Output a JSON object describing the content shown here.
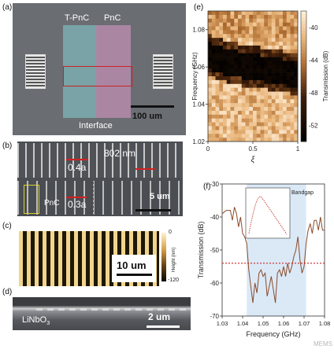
{
  "panel_a": {
    "label": "(a)",
    "region_left": "T-PnC",
    "region_right": "PnC",
    "interface_label": "Interface",
    "scale_bar": "100 um",
    "colors": {
      "left_tint": "#7fb5b9",
      "right_tint": "#c18fb4",
      "box": "#cc2222"
    }
  },
  "panel_b": {
    "label": "(b)",
    "dimension": "802 nm",
    "period_top": "0.4a",
    "period_bottom": "0.3a",
    "pnc_label": "PnC",
    "scale_bar": "5 um"
  },
  "panel_c": {
    "label": "(c)",
    "scale_bar": "10 um",
    "colorbar_max": "0",
    "colorbar_min": "-120",
    "colorbar_title": "Height (nm)"
  },
  "panel_d": {
    "label": "(d)",
    "material": "LiNbO",
    "material_sub": "3",
    "scale_bar": "2 um"
  },
  "panel_e": {
    "label": "(e)",
    "ylabel": "Frequency (GHz)",
    "xlabel": "ξ",
    "colorbar_label": "Transmission (dB)",
    "y_ticks": [
      "1.08",
      "1.06",
      "1.04",
      "1.02"
    ],
    "x_ticks": [
      "0",
      "0.5",
      "1"
    ],
    "colorbar_ticks": [
      "-40",
      "-44",
      "-48",
      "-52"
    ]
  },
  "panel_f": {
    "label": "(f)",
    "bandgap_label": "Bandgap",
    "ylabel": "Transmission (dB)",
    "xlabel": "Frequency (GHz)",
    "y_ticks": [
      "-30",
      "-40",
      "-50",
      "-60",
      "-70"
    ],
    "x_ticks": [
      "1.03",
      "1.04",
      "1.05",
      "1.06",
      "1.07",
      "1.08"
    ],
    "watermark": "MEMS"
  },
  "chart_data": [
    {
      "type": "heatmap",
      "xlabel": "ξ",
      "ylabel": "Frequency (GHz)",
      "xlim": [
        0,
        1
      ],
      "ylim": [
        1.02,
        1.09
      ],
      "colorbar_range": [
        -54,
        -38
      ],
      "colorbar_label": "Transmission (dB)",
      "bandgap_center": [
        [
          0,
          1.066
        ],
        [
          0.25,
          1.062
        ],
        [
          0.5,
          1.06
        ],
        [
          0.75,
          1.058
        ],
        [
          1,
          1.056
        ]
      ]
    },
    {
      "type": "line",
      "xlabel": "Frequency (GHz)",
      "ylabel": "Transmission (dB)",
      "xlim": [
        1.03,
        1.08
      ],
      "ylim": [
        -70,
        -30
      ],
      "threshold_db": -54,
      "bandgap_range": [
        1.042,
        1.071
      ],
      "series": [
        {
          "x": [
            1.03,
            1.032,
            1.034,
            1.035,
            1.036,
            1.037,
            1.038,
            1.039,
            1.04,
            1.041,
            1.042,
            1.043,
            1.044,
            1.045,
            1.046,
            1.047,
            1.048,
            1.049,
            1.05,
            1.051,
            1.052,
            1.053,
            1.054,
            1.055,
            1.056,
            1.057,
            1.058,
            1.059,
            1.06,
            1.061,
            1.062,
            1.063,
            1.064,
            1.065,
            1.066,
            1.067,
            1.068,
            1.069,
            1.07,
            1.071,
            1.072,
            1.073,
            1.074,
            1.075,
            1.076,
            1.077,
            1.078,
            1.079,
            1.08
          ],
          "values": [
            -39,
            -38,
            -38,
            -41,
            -37,
            -39,
            -43,
            -40,
            -45,
            -46,
            -48,
            -56,
            -61,
            -66,
            -60,
            -63,
            -57,
            -56,
            -58,
            -57,
            -64,
            -61,
            -58,
            -62,
            -66,
            -57,
            -56,
            -58,
            -55,
            -58,
            -54,
            -57,
            -55,
            -52,
            -50,
            -46,
            -53,
            -57,
            -55,
            -48,
            -44,
            -42,
            -45,
            -41,
            -41,
            -44,
            -40,
            -44,
            -44
          ]
        }
      ]
    }
  ]
}
